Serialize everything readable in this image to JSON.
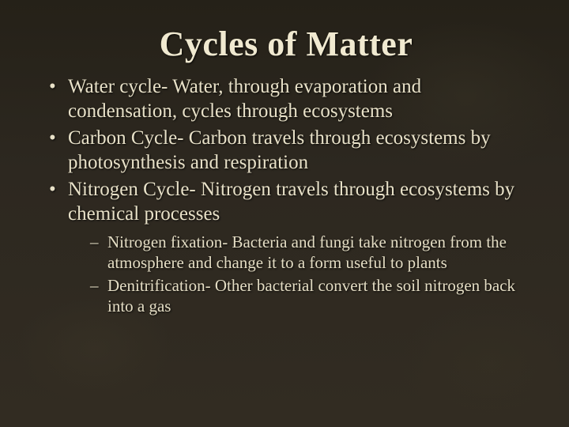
{
  "title": "Cycles of Matter",
  "bullets": [
    {
      "text": "Water cycle- Water, through evaporation and condensation, cycles through ecosystems"
    },
    {
      "text": "Carbon Cycle- Carbon travels through ecosystems by photosynthesis and respiration"
    },
    {
      "text": "Nitrogen Cycle- Nitrogen travels through ecosystems by chemical processes"
    }
  ],
  "subbullets": [
    {
      "text": "Nitrogen fixation- Bacteria and fungi take nitrogen from the atmosphere and change it to a form useful to plants"
    },
    {
      "text": "Denitrification- Other bacterial convert the soil nitrogen back into a gas"
    }
  ],
  "style": {
    "background_color": "#2a251e",
    "text_color": "#e8e1c8",
    "title_fontsize": 44,
    "body_fontsize": 25,
    "sub_fontsize": 21,
    "font_family": "Book Antiqua / Palatino serif"
  }
}
